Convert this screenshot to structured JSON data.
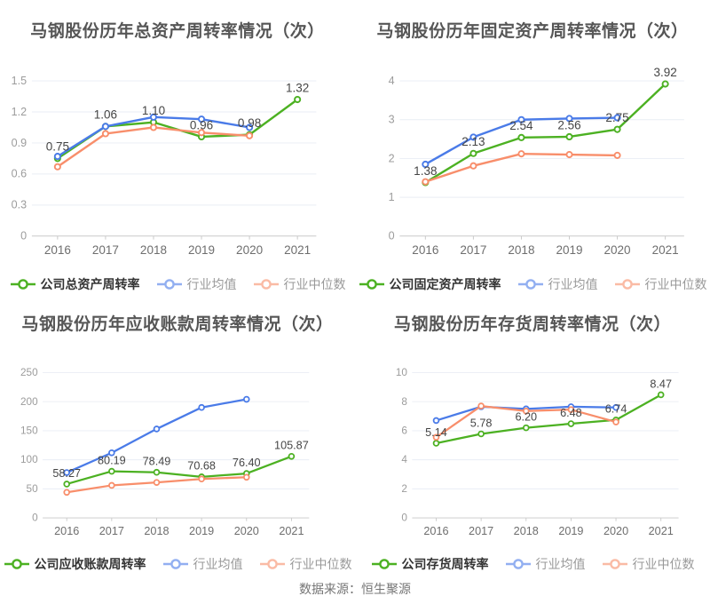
{
  "page": {
    "source_note": "数据来源：恒生聚源"
  },
  "colors": {
    "company_green": "#4cb122",
    "industry_mean_blue": "#4a7be8",
    "industry_median_orange": "#f88e6b",
    "gridline": "#e9edf4",
    "axis_line": "#c9c9c9"
  },
  "chart_data": [
    {
      "type": "line",
      "title": "马钢股份历年总资产周转率情况（次）",
      "categories": [
        "2016",
        "2017",
        "2018",
        "2019",
        "2020",
        "2021"
      ],
      "ylim": [
        0,
        1.5
      ],
      "yticks": [
        "0",
        "0.3",
        "0.6",
        "0.9",
        "1.2",
        "1.5"
      ],
      "grid": true,
      "legend_position": "bottom",
      "series": [
        {
          "name": "公司总资产周转率",
          "role": "company",
          "color": "#4cb122",
          "values": [
            0.75,
            1.06,
            1.1,
            0.96,
            0.98,
            1.32
          ],
          "labels": [
            "0.75",
            "1.06",
            "1.10",
            "0.96",
            "0.98",
            "1.32"
          ]
        },
        {
          "name": "行业均值",
          "role": "industry-mean",
          "color": "#4a7be8",
          "values": [
            0.77,
            1.06,
            1.15,
            1.13,
            1.05,
            null
          ]
        },
        {
          "name": "行业中位数",
          "role": "industry-median",
          "color": "#f88e6b",
          "values": [
            0.67,
            0.99,
            1.05,
            1.0,
            0.97,
            null
          ]
        }
      ]
    },
    {
      "type": "line",
      "title": "马钢股份历年固定资产周转率情况（次）",
      "categories": [
        "2016",
        "2017",
        "2018",
        "2019",
        "2020",
        "2021"
      ],
      "ylim": [
        0,
        4
      ],
      "yticks": [
        "0",
        "1",
        "2",
        "3",
        "4"
      ],
      "grid": true,
      "legend_position": "bottom",
      "series": [
        {
          "name": "公司固定资产周转率",
          "role": "company",
          "color": "#4cb122",
          "values": [
            1.38,
            2.13,
            2.54,
            2.56,
            2.75,
            3.92
          ],
          "labels": [
            "1.38",
            "2.13",
            "2.54",
            "2.56",
            "2.75",
            "3.92"
          ]
        },
        {
          "name": "行业均值",
          "role": "industry-mean",
          "color": "#4a7be8",
          "values": [
            1.85,
            2.55,
            3.0,
            3.03,
            3.05,
            null
          ]
        },
        {
          "name": "行业中位数",
          "role": "industry-median",
          "color": "#f88e6b",
          "values": [
            1.4,
            1.81,
            2.12,
            2.1,
            2.08,
            null
          ]
        }
      ]
    },
    {
      "type": "line",
      "title": "马钢股份历年应收账款周转率情况（次）",
      "categories": [
        "2016",
        "2017",
        "2018",
        "2019",
        "2020",
        "2021"
      ],
      "ylim": [
        0,
        250
      ],
      "yticks": [
        "0",
        "50",
        "100",
        "150",
        "200",
        "250"
      ],
      "grid": true,
      "legend_position": "bottom",
      "series": [
        {
          "name": "公司应收账款周转率",
          "role": "company",
          "color": "#4cb122",
          "values": [
            58.27,
            80.19,
            78.49,
            70.68,
            76.4,
            105.87
          ],
          "labels": [
            "58.27",
            "80.19",
            "78.49",
            "70.68",
            "76.40",
            "105.87"
          ]
        },
        {
          "name": "行业均值",
          "role": "industry-mean",
          "color": "#4a7be8",
          "values": [
            78,
            112,
            153,
            190,
            204,
            null
          ]
        },
        {
          "name": "行业中位数",
          "role": "industry-median",
          "color": "#f88e6b",
          "values": [
            44,
            56,
            61,
            67,
            70,
            null
          ]
        }
      ]
    },
    {
      "type": "line",
      "title": "马钢股份历年存货周转率情况（次）",
      "categories": [
        "2016",
        "2017",
        "2018",
        "2019",
        "2020",
        "2021"
      ],
      "ylim": [
        0,
        10
      ],
      "yticks": [
        "0",
        "2",
        "4",
        "6",
        "8",
        "10"
      ],
      "grid": true,
      "legend_position": "bottom",
      "series": [
        {
          "name": "公司存货周转率",
          "role": "company",
          "color": "#4cb122",
          "values": [
            5.14,
            5.78,
            6.2,
            6.48,
            6.74,
            8.47
          ],
          "labels": [
            "5.14",
            "5.78",
            "6.20",
            "6.48",
            "6.74",
            "8.47"
          ]
        },
        {
          "name": "行业均值",
          "role": "industry-mean",
          "color": "#4a7be8",
          "values": [
            6.7,
            7.65,
            7.5,
            7.65,
            7.6,
            null
          ]
        },
        {
          "name": "行业中位数",
          "role": "industry-median",
          "color": "#f88e6b",
          "values": [
            5.55,
            7.7,
            7.35,
            7.45,
            6.6,
            null
          ]
        }
      ]
    }
  ]
}
